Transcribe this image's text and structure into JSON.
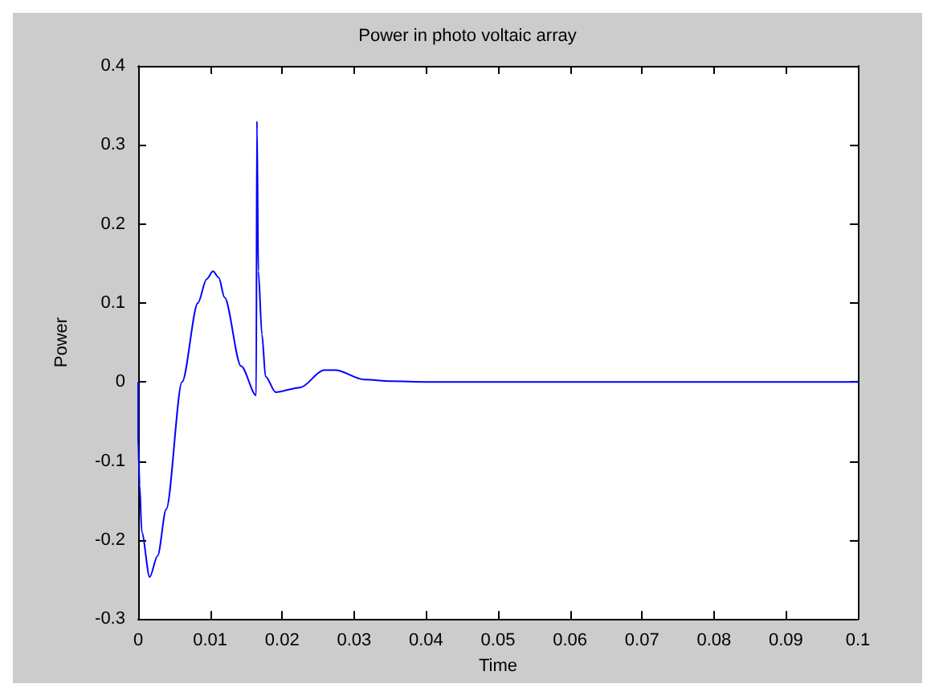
{
  "chart_data": {
    "type": "line",
    "title": "Power in photo voltaic array",
    "xlabel": "Time",
    "ylabel": "Power",
    "x": [
      0,
      0,
      0.0002,
      0.0005,
      0.0016,
      0.0027,
      0.0039,
      0.0061,
      0.0083,
      0.0095,
      0.0104,
      0.0112,
      0.012,
      0.0143,
      0.0164,
      0.0165,
      0.0167,
      0.0172,
      0.0177,
      0.0191,
      0.0225,
      0.0258,
      0.0274,
      0.0314,
      0.0351,
      0.04,
      0.06,
      0.08,
      0.1
    ],
    "series": [
      {
        "color": "#0000ff",
        "values": [
          0,
          -0.074,
          -0.13,
          -0.19,
          -0.247,
          -0.22,
          -0.161,
          0,
          0.1,
          0.13,
          0.14,
          0.132,
          0.107,
          0.02,
          -0.017,
          0.33,
          0.14,
          0.06,
          0.007,
          -0.013,
          -0.007,
          0.015,
          0.015,
          0.003,
          0.001,
          0,
          0,
          0,
          0
        ]
      }
    ],
    "xlim": [
      0,
      0.1
    ],
    "xticks": [
      0,
      0.01,
      0.02,
      0.03,
      0.04,
      0.05,
      0.06,
      0.07,
      0.08,
      0.09,
      0.1
    ],
    "ylim": [
      -0.3,
      0.4
    ],
    "yticks": [
      -0.3,
      -0.2,
      -0.1,
      0,
      0.1,
      0.2,
      0.3,
      0.4
    ],
    "marker": "none",
    "line_style": "solid"
  }
}
